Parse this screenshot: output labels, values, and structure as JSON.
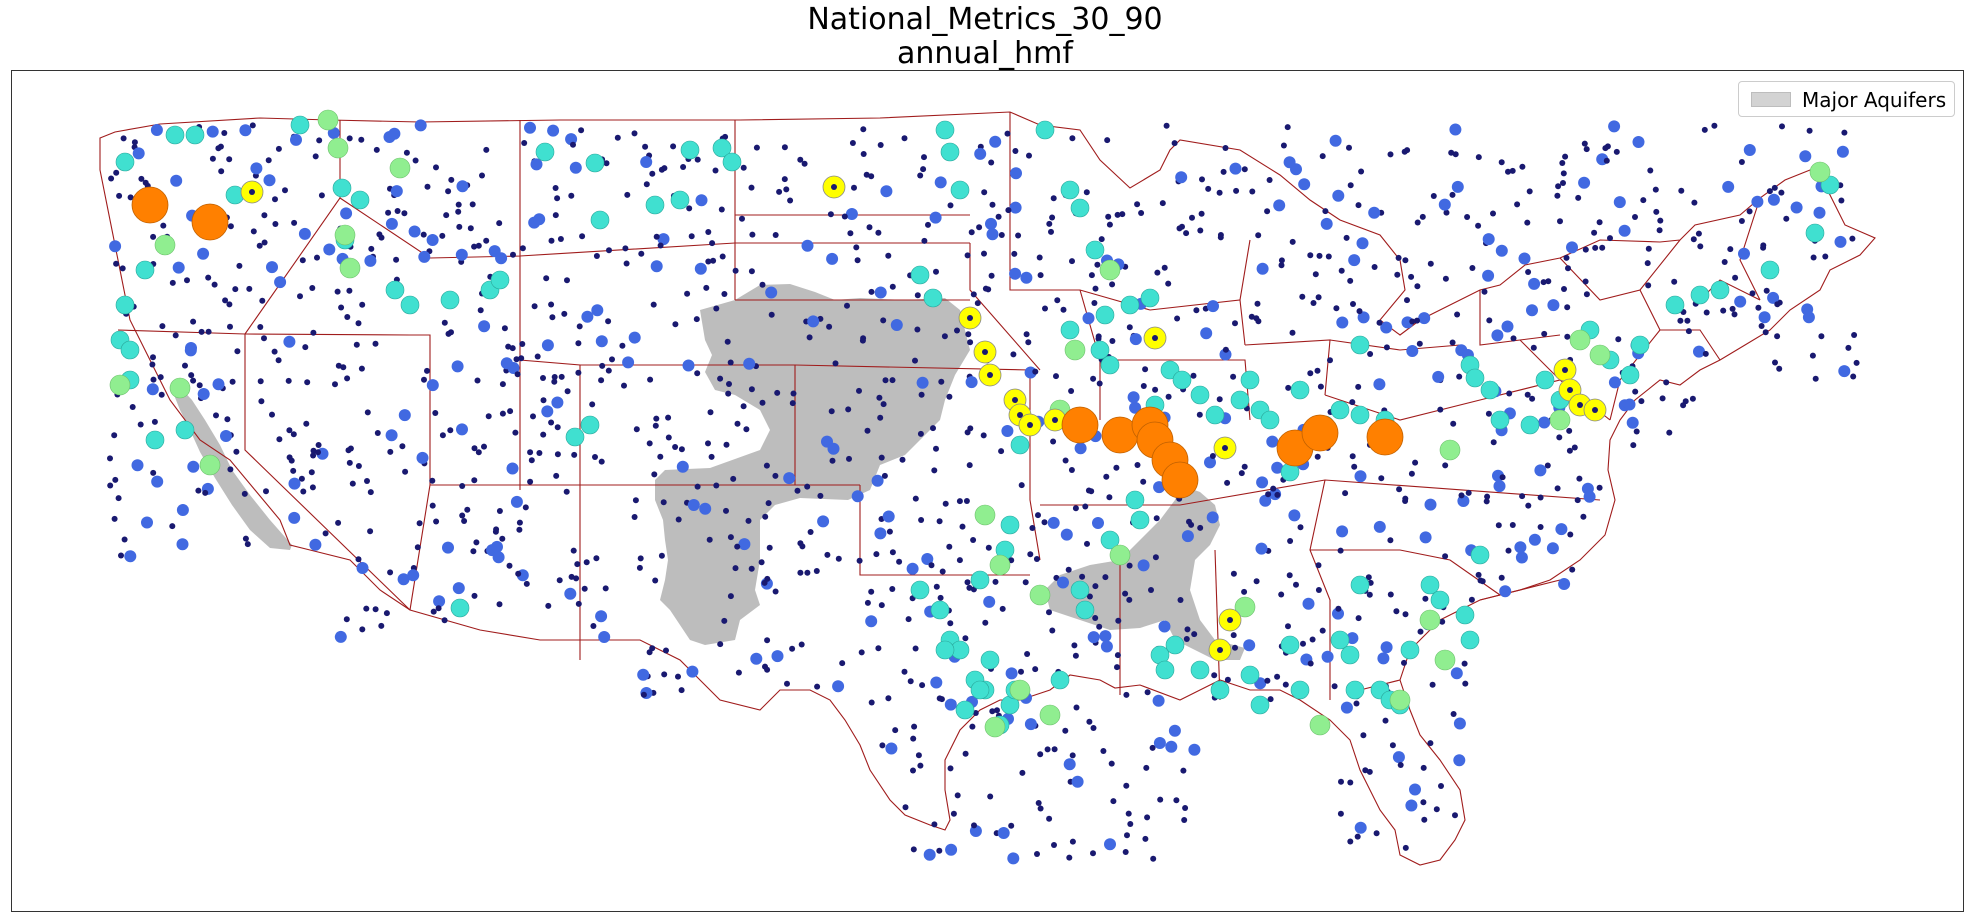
{
  "title": {
    "line1": "National_Metrics_30_90",
    "line2": "annual_hmf"
  },
  "legend": {
    "label": "Major Aquifers",
    "swatch_color": "#d3d3d3"
  },
  "colors": {
    "aquifer": "#bdbdbd",
    "state_border": "#a01c1c",
    "tier_small": "#191970",
    "tier_medium": "#4169e1",
    "tier_large": "#40e0d0",
    "tier_xlarge": "#90ee90",
    "tier_xxlarge": "#ffff00",
    "tier_max": "#ff8000"
  }
}
